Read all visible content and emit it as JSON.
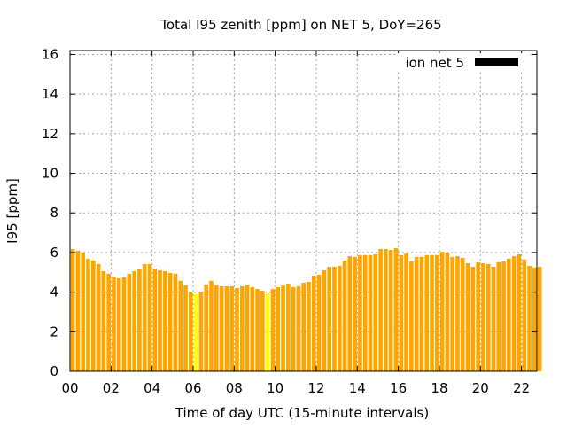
{
  "chart_data": {
    "type": "bar",
    "title": "Total I95 zenith [ppm] on NET 5, DoY=265",
    "xlabel": "Time of day UTC (15-minute intervals)",
    "ylabel": "I95 [ppm]",
    "xlim": [
      0,
      22.75
    ],
    "ylim": [
      0,
      16.2
    ],
    "x_ticks": [
      "00",
      "02",
      "04",
      "06",
      "08",
      "10",
      "12",
      "14",
      "16",
      "18",
      "20",
      "22"
    ],
    "y_ticks": [
      "0",
      "2",
      "4",
      "6",
      "8",
      "10",
      "12",
      "14",
      "16"
    ],
    "grid": true,
    "legend": {
      "position": "top-right",
      "entries": [
        {
          "name": "ion net 5",
          "color": "#000000"
        }
      ]
    },
    "bar_color": "#ffa500",
    "highlight_color": "#ffff00",
    "highlight_indices": [
      24,
      38
    ],
    "interval_hours": 0.25,
    "values": [
      6.18,
      6.09,
      6.0,
      5.69,
      5.6,
      5.42,
      5.06,
      4.93,
      4.79,
      4.7,
      4.75,
      4.93,
      5.06,
      5.15,
      5.42,
      5.42,
      5.19,
      5.1,
      5.06,
      4.97,
      4.93,
      4.57,
      4.34,
      3.99,
      3.9,
      4.03,
      4.39,
      4.57,
      4.34,
      4.3,
      4.3,
      4.3,
      4.21,
      4.3,
      4.39,
      4.25,
      4.16,
      4.07,
      3.94,
      4.16,
      4.25,
      4.34,
      4.43,
      4.25,
      4.3,
      4.48,
      4.52,
      4.84,
      4.88,
      5.1,
      5.28,
      5.28,
      5.33,
      5.6,
      5.82,
      5.78,
      5.87,
      5.87,
      5.87,
      5.91,
      6.18,
      6.18,
      6.13,
      6.22,
      5.87,
      5.96,
      5.55,
      5.78,
      5.78,
      5.87,
      5.87,
      5.87,
      6.04,
      6.0,
      5.78,
      5.82,
      5.73,
      5.46,
      5.28,
      5.51,
      5.46,
      5.42,
      5.28,
      5.51,
      5.55,
      5.69,
      5.82,
      5.91,
      5.64,
      5.33,
      5.24,
      5.28
    ]
  }
}
